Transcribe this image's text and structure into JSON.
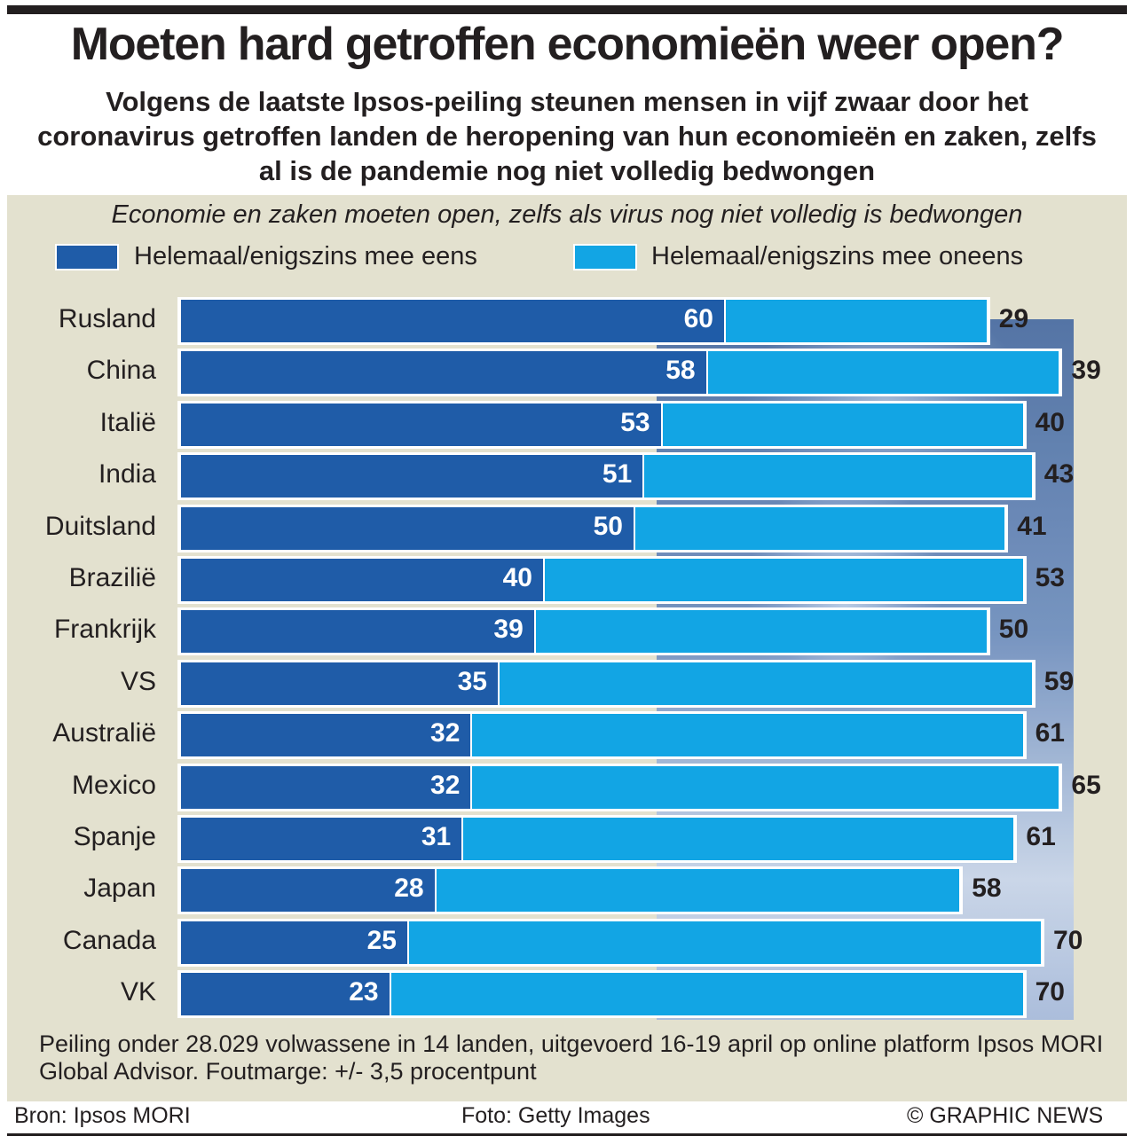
{
  "title": "Moeten hard getroffen economieën weer open?",
  "subtitle": "Volgens de laatste Ipsos-peiling steunen mensen in vijf zwaar door het coronavirus getroffen landen de heropening van hun economieën en zaken, zelfs al is de pandemie nog niet volledig bedwongen",
  "note": "Peiling onder 28.029 volwassene in 14 landen, uitgevoerd 16-19 april op online platform Ipsos MORI Global Advisor. Foutmarge: +/- 3,5 procentpunt",
  "footer": {
    "source": "Bron: Ipsos MORI",
    "photo": "Foto: Getty Images",
    "credit": "© GRAPHIC NEWS"
  },
  "colors": {
    "agree": "#1f5ca8",
    "disagree": "#12a5e4",
    "background": "#e3e1cf"
  },
  "chart_data": {
    "type": "bar",
    "orientation": "horizontal",
    "stacked": true,
    "title": "Economie en zaken moeten open, zelfs als virus nog niet volledig is bedwongen",
    "categories": [
      "Rusland",
      "China",
      "Italië",
      "India",
      "Duitsland",
      "Brazilië",
      "Frankrijk",
      "VS",
      "Australië",
      "Mexico",
      "Spanje",
      "Japan",
      "Canada",
      "VK"
    ],
    "series": [
      {
        "name": "Helemaal/enigszins mee eens",
        "values": [
          60,
          58,
          53,
          51,
          50,
          40,
          39,
          35,
          32,
          32,
          31,
          28,
          25,
          23
        ]
      },
      {
        "name": "Helemaal/enigszins mee oneens",
        "values": [
          29,
          39,
          40,
          43,
          41,
          53,
          50,
          59,
          61,
          65,
          61,
          58,
          70,
          70
        ]
      }
    ],
    "xlim": [
      0,
      100
    ],
    "legend_position": "top",
    "grid": false
  }
}
